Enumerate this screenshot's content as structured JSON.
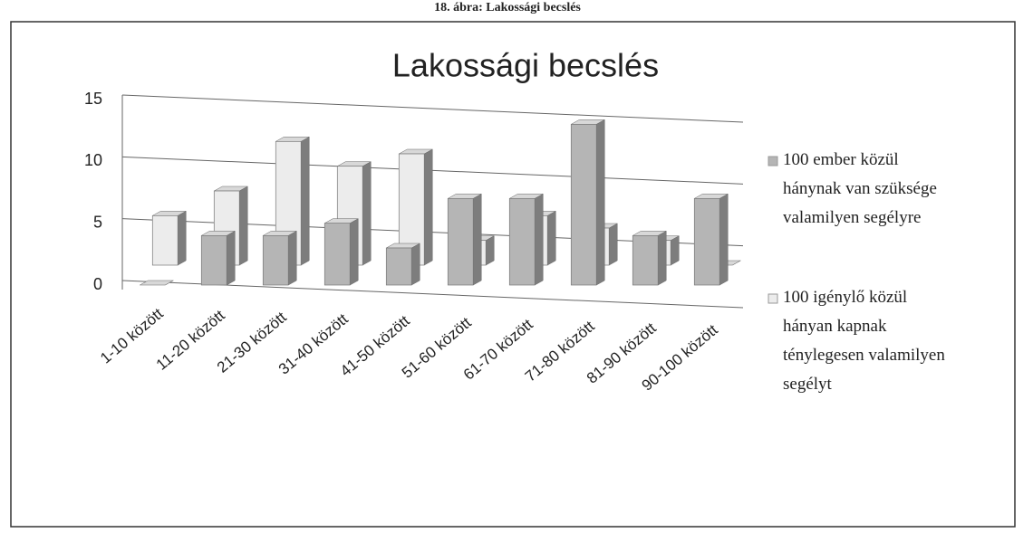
{
  "caption": "18. ábra: Lakossági becslés",
  "chart_data": {
    "type": "bar3d",
    "title": "Lakossági becslés",
    "categories": [
      "1-10 között",
      "11-20 között",
      "21-30 között",
      "31-40 között",
      "41-50 között",
      "51-60 között",
      "61-70 között",
      "71-80 között",
      "81-90 között",
      "90-100 között"
    ],
    "series": [
      {
        "name": "100 ember közül hánynak van szüksége valamilyen segélyre",
        "color": "#b5b5b5",
        "values": [
          0,
          4,
          4,
          5,
          3,
          7,
          7,
          13,
          4,
          7
        ]
      },
      {
        "name": "100 igénylő közül hányan kapnak ténylegesen valamilyen segélyt",
        "color": "#ececec",
        "values": [
          4,
          6,
          10,
          8,
          9,
          2,
          4,
          3,
          2,
          0
        ]
      }
    ],
    "ylim": [
      0,
      15
    ],
    "yticks": [
      0,
      5,
      10,
      15
    ],
    "grid": true,
    "legend": "right"
  }
}
